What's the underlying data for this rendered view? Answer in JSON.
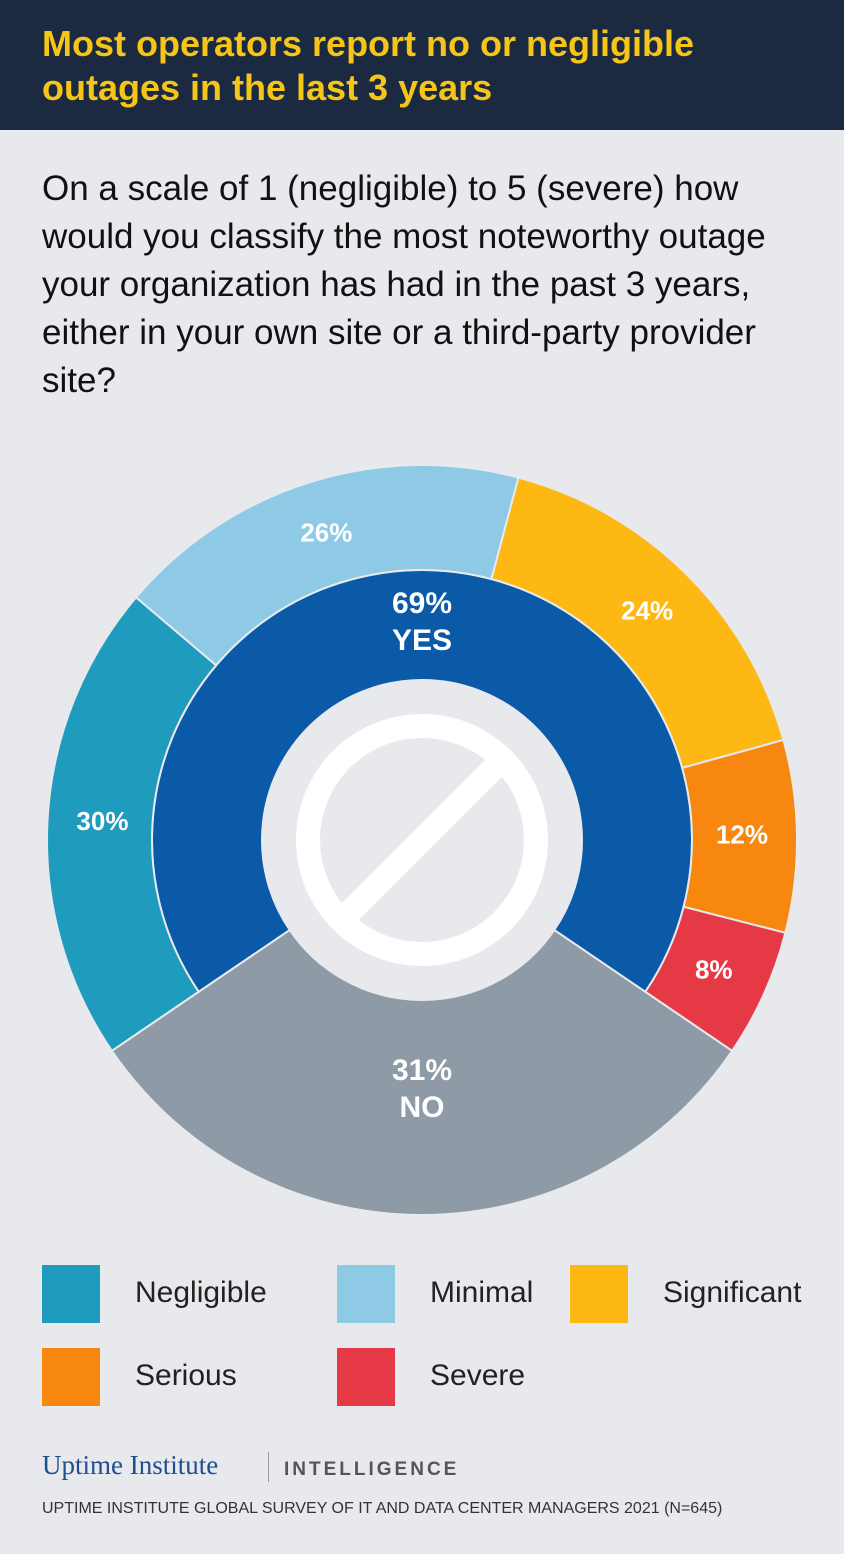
{
  "header": {
    "title": "Most operators report no or negligible outages in the last 3 years"
  },
  "question": "On a scale of 1 (negligible) to 5 (severe) how would you classify the most noteworthy outage your organization has had in the past 3 years, either in your own site or a third-party provider site?",
  "chart_data": {
    "type": "donut",
    "categories": [
      "Negligible",
      "Minimal",
      "Significant",
      "Serious",
      "Severe"
    ],
    "values": [
      30,
      26,
      24,
      12,
      8
    ],
    "value_labels": [
      "30%",
      "26%",
      "24%",
      "12%",
      "8%"
    ],
    "colors": [
      "#1f9bbd",
      "#8ecae6",
      "#fdb813",
      "#f7870f",
      "#e63946"
    ],
    "inner": {
      "categories": [
        "YES",
        "NO"
      ],
      "values": [
        69,
        31
      ],
      "value_labels": [
        "69%",
        "31%"
      ],
      "colors": [
        "#0a5aa8",
        "#8e9aa6"
      ]
    }
  },
  "footer": {
    "brand": "Uptime Institute",
    "division": "INTELLIGENCE",
    "source": "UPTIME INSTITUTE GLOBAL SURVEY OF IT AND DATA CENTER MANAGERS 2021 (N=645)"
  }
}
